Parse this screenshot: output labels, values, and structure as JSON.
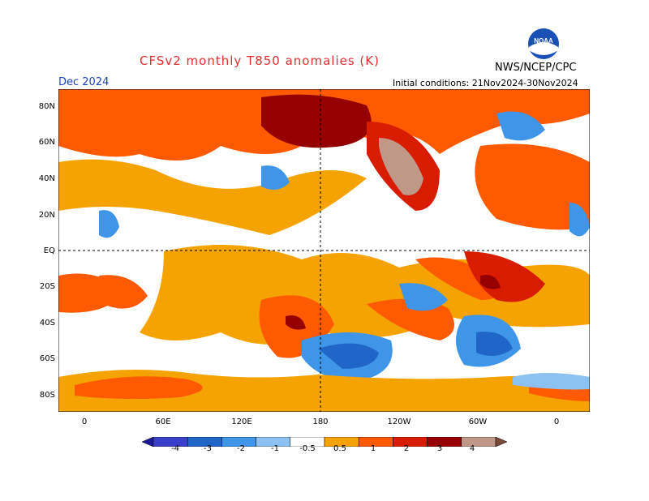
{
  "title": "CFSv2 monthly T850 anomalies (K)",
  "organization": "NWS/NCEP/CPC",
  "logo_text": "NOAA",
  "month": "Dec 2024",
  "initial_conditions": "Initial conditions: 21Nov2024-30Nov2024",
  "lat_labels": [
    "80N",
    "60N",
    "40N",
    "20N",
    "EQ",
    "20S",
    "40S",
    "60S",
    "80S"
  ],
  "lon_labels": [
    "0",
    "60E",
    "120E",
    "180",
    "120W",
    "60W",
    "0"
  ],
  "colorbar": {
    "labels": [
      "-4",
      "-3",
      "-2",
      "-1",
      "-0.5",
      "0.5",
      "1",
      "2",
      "3",
      "4"
    ],
    "colors": [
      "#1c1a9a",
      "#3a3fc8",
      "#1f66c8",
      "#3f95e8",
      "#8cc2f2",
      "#ffffff",
      "#f5a300",
      "#ff5a00",
      "#d81c00",
      "#960000",
      "#c09888",
      "#7a4a3a"
    ]
  }
}
